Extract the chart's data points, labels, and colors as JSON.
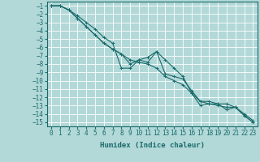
{
  "xlabel": "Humidex (Indice chaleur)",
  "background_color": "#b2d8d8",
  "grid_color": "#ffffff",
  "line_color": "#1a6b6b",
  "x_values": [
    0,
    1,
    2,
    3,
    4,
    5,
    6,
    7,
    8,
    9,
    10,
    11,
    12,
    13,
    14,
    15,
    16,
    17,
    18,
    19,
    20,
    21,
    22,
    23
  ],
  "line1_y": [
    -1,
    -1,
    -1.5,
    -2.2,
    -3.0,
    -3.8,
    -4.8,
    -5.5,
    -8.5,
    -8.5,
    -7.5,
    -7.2,
    -6.5,
    -9.2,
    -9.5,
    -9.8,
    -11.2,
    -12.5,
    -12.5,
    -12.8,
    -12.8,
    -13.2,
    -14.0,
    -14.8
  ],
  "line2_y": [
    -1,
    -1,
    -1.5,
    -2.5,
    -3.5,
    -4.5,
    -5.5,
    -6.2,
    -6.8,
    -8.0,
    -7.5,
    -7.8,
    -6.5,
    -7.5,
    -8.5,
    -9.5,
    -11.5,
    -13.0,
    -12.8,
    -12.8,
    -13.5,
    -13.2,
    -14.2,
    -15.0
  ],
  "line3_y": [
    -1,
    -1,
    -1.5,
    -2.5,
    -3.5,
    -4.5,
    -5.5,
    -6.2,
    -6.8,
    -7.5,
    -7.8,
    -8.0,
    -8.5,
    -9.5,
    -10.0,
    -10.5,
    -11.5,
    -12.5,
    -12.8,
    -13.0,
    -13.2,
    -13.2,
    -14.2,
    -15.0
  ],
  "ylim": [
    -15.5,
    -0.5
  ],
  "xlim": [
    -0.5,
    23.5
  ],
  "yticks": [
    -1,
    -2,
    -3,
    -4,
    -5,
    -6,
    -7,
    -8,
    -9,
    -10,
    -11,
    -12,
    -13,
    -14,
    -15
  ],
  "xticks": [
    0,
    1,
    2,
    3,
    4,
    5,
    6,
    7,
    8,
    9,
    10,
    11,
    12,
    13,
    14,
    15,
    16,
    17,
    18,
    19,
    20,
    21,
    22,
    23
  ],
  "tick_fontsize": 5.5,
  "xlabel_fontsize": 6.5
}
